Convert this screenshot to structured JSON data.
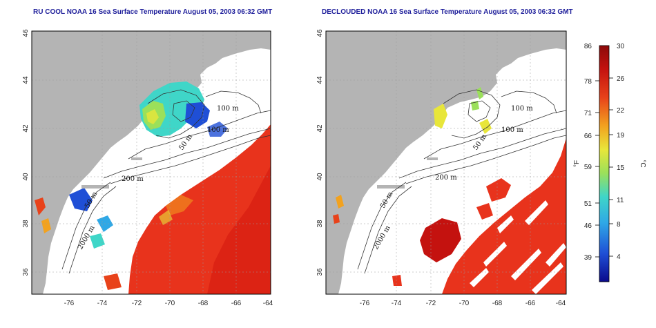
{
  "titles": {
    "left": "RU COOL NOAA 16 Sea Surface Temperature August 05, 2003 06:32 GMT",
    "right": "DECLOUDED NOAA 16 Sea Surface Temperature August 05, 2003 06:32 GMT"
  },
  "axes": {
    "x_ticks": [
      "-76",
      "-74",
      "-72",
      "-70",
      "-68",
      "-66",
      "-64"
    ],
    "y_ticks": [
      "46",
      "44",
      "42",
      "40",
      "38",
      "36"
    ]
  },
  "contour_labels": [
    "100 m",
    "100 m",
    "50 m",
    "200 m",
    "50 m",
    "2000 m"
  ],
  "contour_labels_right": [
    "100 m",
    "100 m",
    "50 m",
    "200 m",
    "50 m",
    "2000 m"
  ],
  "colorbar": {
    "f_label": "°F",
    "c_label": "°C",
    "f_ticks": [
      "86",
      "78",
      "71",
      "66",
      "59",
      "51",
      "46",
      "39"
    ],
    "c_ticks": [
      "30",
      "26",
      "22",
      "19",
      "15",
      "11",
      "8",
      "4"
    ],
    "colors": [
      "#0a0a8c",
      "#1f4fd6",
      "#2fa8e6",
      "#3fd6c8",
      "#9be05a",
      "#e8e63a",
      "#f2a21f",
      "#e8421a",
      "#c4120f",
      "#8c0a0a"
    ]
  },
  "colors": {
    "land": "#b4b4b4",
    "ocean_no_data": "#ffffff",
    "warm_water": "#e8331c",
    "title": "#1d1d9a"
  }
}
